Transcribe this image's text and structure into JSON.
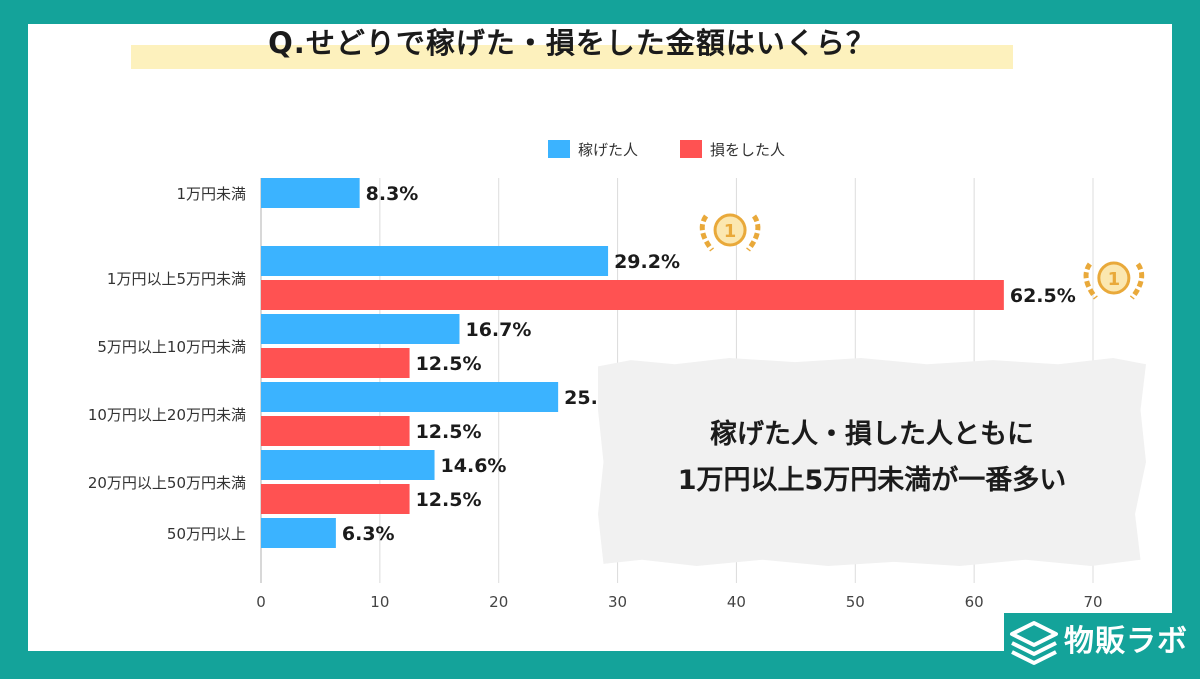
{
  "chart_data": {
    "type": "bar",
    "orientation": "horizontal",
    "title": "Q.せどりで稼げた・損をした金額はいくら？",
    "categories": [
      "1万円未満",
      "1万円以上5万円未満",
      "5万円以上10万円未満",
      "10万円以上20万円未満",
      "20万円以上50万円未満",
      "50万円以上"
    ],
    "series": [
      {
        "name": "稼げた人",
        "color": "#3bb3ff",
        "values": [
          8.3,
          29.2,
          16.7,
          25.0,
          14.6,
          6.3
        ]
      },
      {
        "name": "損をした人",
        "color": "#ff5252",
        "values": [
          null,
          62.5,
          12.5,
          12.5,
          12.5,
          null
        ]
      }
    ],
    "value_suffix": "%",
    "xlim": [
      0,
      70
    ],
    "xticks": [
      0,
      10,
      20,
      30,
      40,
      50,
      60,
      70
    ],
    "grid": true,
    "legend": "top"
  },
  "annotation": {
    "line1": "稼げた人・損した人ともに",
    "line2": "1万円以上5万円未満が一番多い"
  },
  "badge_label": "1",
  "badge_color": "#e9a93a",
  "logo": {
    "text": "物販ラボ"
  },
  "colors": {
    "background": "#14a39a",
    "title_band": "#fdf1bd"
  }
}
